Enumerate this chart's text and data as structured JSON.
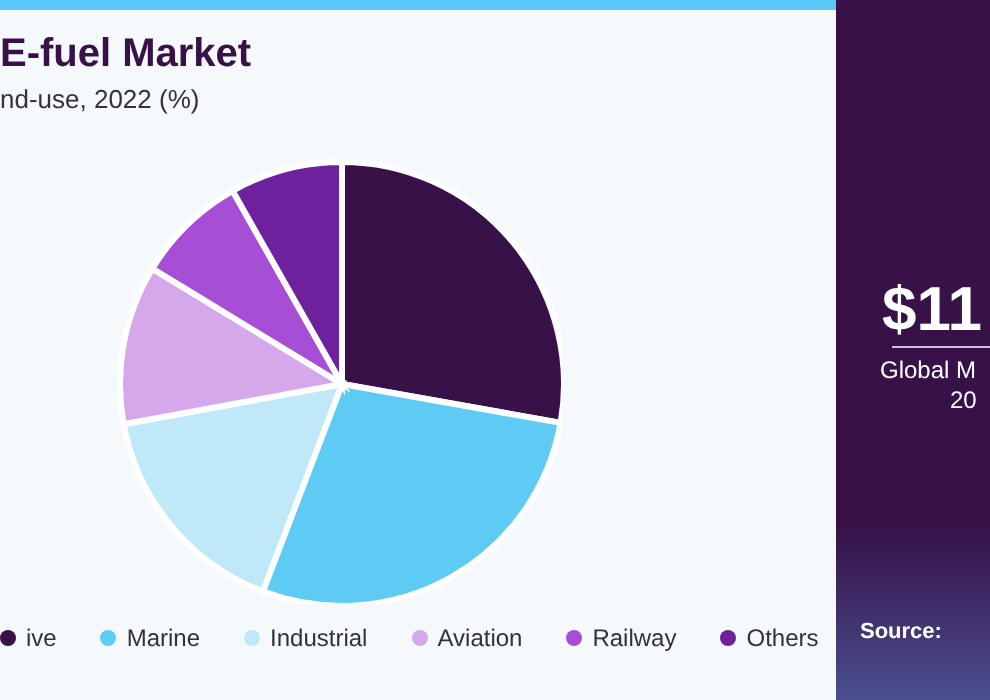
{
  "chart_data": {
    "type": "pie",
    "title": "E-fuel Market",
    "subtitle": "nd-use, 2022 (%)",
    "categories": [
      "ive",
      "Marine",
      "Industrial",
      "Aviation",
      "Railway",
      "Others"
    ],
    "values": [
      27.8,
      28.0,
      16.3,
      11.6,
      8.1,
      8.2
    ],
    "colors": [
      "#371148",
      "#5ecbf5",
      "#bfe9f9",
      "#d5a8eb",
      "#a64fd6",
      "#6e219c"
    ],
    "legend": "bottom",
    "annotations": [
      "$11",
      "Global M",
      "20",
      "Source:"
    ]
  }
}
